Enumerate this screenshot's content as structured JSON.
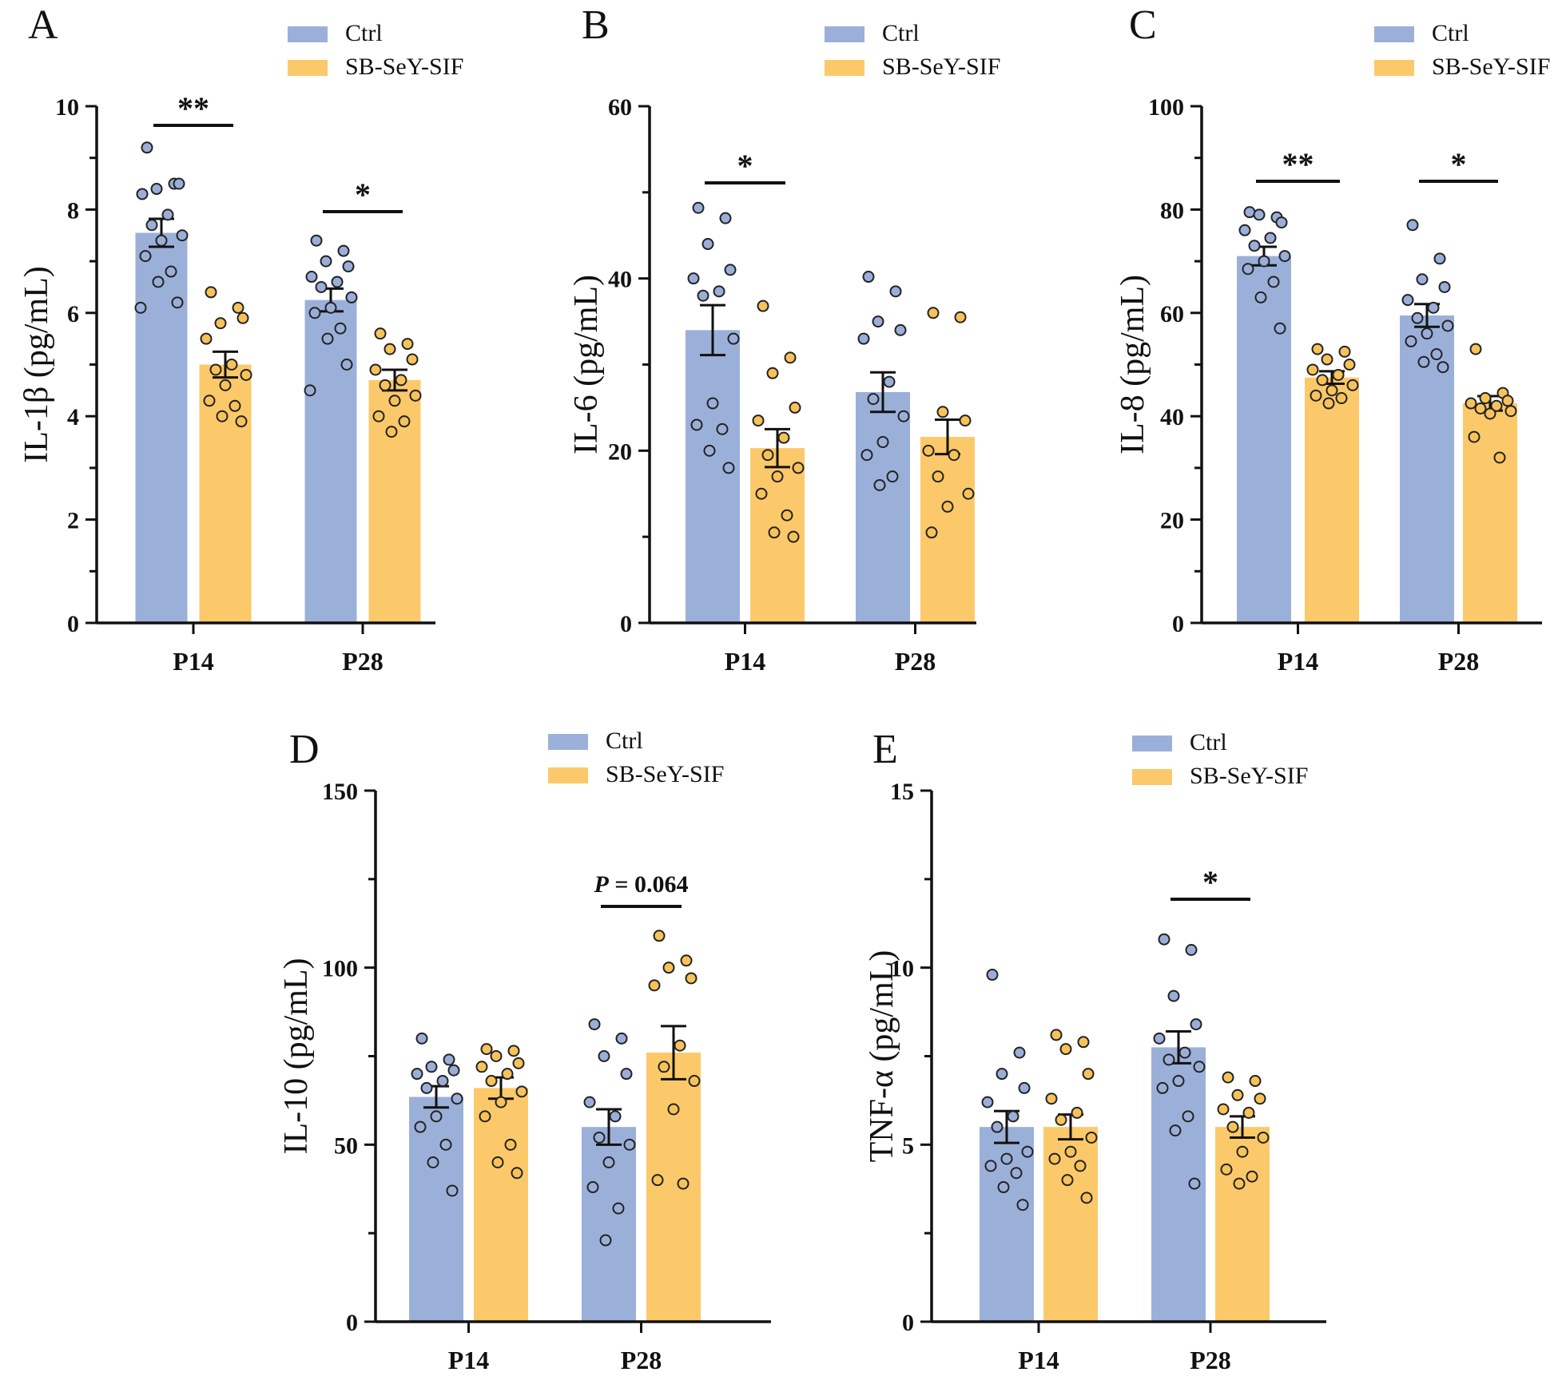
{
  "colors": {
    "ctrl": "#9bb0d9",
    "ctrl_dot": "#9aaed8",
    "treat": "#fcc96a",
    "treat_dot": "#f8c25a",
    "axis": "#111111"
  },
  "legend": {
    "ctrl": "Ctrl",
    "treat": "SB-SeY-SIF"
  },
  "chart_data": [
    {
      "panel": "A",
      "type": "bar",
      "ylabel": "IL-1β (pg/mL)",
      "ylim": [
        0,
        10
      ],
      "yticks": [
        "0",
        "2",
        "4",
        "6",
        "8",
        "10"
      ],
      "categories": [
        "P14",
        "P28"
      ],
      "series": [
        {
          "name": "Ctrl",
          "values": [
            7.55,
            6.25
          ],
          "sem": [
            0.27,
            0.22
          ],
          "points": [
            [
              9.2,
              8.5,
              8.4,
              8.5,
              8.3,
              7.9,
              7.7,
              7.5,
              7.4,
              7.1,
              6.8,
              6.6,
              6.2,
              6.1
            ],
            [
              7.4,
              7.2,
              7.0,
              6.9,
              6.7,
              6.6,
              6.5,
              6.3,
              6.1,
              6.0,
              5.7,
              5.5,
              5.0,
              4.5
            ]
          ]
        },
        {
          "name": "SB-SeY-SIF",
          "values": [
            5.0,
            4.7
          ],
          "sem": [
            0.25,
            0.2
          ],
          "points": [
            [
              6.4,
              6.1,
              5.8,
              5.9,
              5.5,
              5.0,
              4.9,
              4.8,
              4.6,
              4.3,
              4.2,
              4.0,
              3.9
            ],
            [
              5.6,
              5.4,
              5.3,
              5.1,
              4.9,
              4.7,
              4.6,
              4.4,
              4.3,
              4.0,
              3.9,
              3.7
            ]
          ]
        }
      ],
      "sig": [
        "**",
        "*"
      ]
    },
    {
      "panel": "B",
      "type": "bar",
      "ylabel": "IL-6 (pg/mL)",
      "ylim": [
        0,
        60
      ],
      "yticks": [
        "0",
        "20",
        "40",
        "60"
      ],
      "categories": [
        "P14",
        "P28"
      ],
      "series": [
        {
          "name": "Ctrl",
          "values": [
            34.0,
            26.8
          ],
          "sem": [
            2.9,
            2.3
          ],
          "points": [
            [
              48.2,
              47.0,
              44.0,
              41.0,
              40.0,
              38.5,
              38.0,
              33.0,
              25.5,
              23.0,
              22.5,
              20.0,
              18.0
            ],
            [
              40.2,
              38.5,
              35.0,
              34.0,
              33.0,
              28.0,
              26.0,
              24.0,
              21.0,
              19.5,
              17.0,
              16.0
            ]
          ]
        },
        {
          "name": "SB-SeY-SIF",
          "values": [
            20.3,
            21.6
          ],
          "sem": [
            2.2,
            2.0
          ],
          "points": [
            [
              36.8,
              30.8,
              29.0,
              25.0,
              23.5,
              21.5,
              19.5,
              18.0,
              17.0,
              15.0,
              12.5,
              10.5,
              10.0
            ],
            [
              36.0,
              35.5,
              24.5,
              23.5,
              20.0,
              19.5,
              17.0,
              15.0,
              13.5,
              10.5
            ]
          ]
        }
      ],
      "sig": [
        "*",
        ""
      ]
    },
    {
      "panel": "C",
      "type": "bar",
      "ylabel": "IL-8 (pg/mL)",
      "ylim": [
        0,
        100
      ],
      "yticks": [
        "0",
        "20",
        "40",
        "60",
        "80",
        "100"
      ],
      "categories": [
        "P14",
        "P28"
      ],
      "series": [
        {
          "name": "Ctrl",
          "values": [
            71.0,
            59.5
          ],
          "sem": [
            1.8,
            2.2
          ],
          "points": [
            [
              79.5,
              78.5,
              79.0,
              77.5,
              76.0,
              74.5,
              73.0,
              71.0,
              70.0,
              68.5,
              66.0,
              63.0,
              57.0
            ],
            [
              77.0,
              70.5,
              66.5,
              65.0,
              62.5,
              61.0,
              59.0,
              57.5,
              56.0,
              54.5,
              52.0,
              50.5,
              49.5
            ]
          ]
        },
        {
          "name": "SB-SeY-SIF",
          "values": [
            47.5,
            42.5
          ],
          "sem": [
            1.2,
            1.4
          ],
          "points": [
            [
              53.0,
              52.5,
              51.0,
              50.0,
              49.0,
              48.0,
              47.0,
              46.0,
              45.0,
              44.0,
              43.5,
              42.5
            ],
            [
              53.0,
              44.5,
              43.5,
              43.0,
              42.5,
              42.0,
              41.5,
              41.0,
              40.5,
              36.0,
              32.0
            ]
          ]
        }
      ],
      "sig": [
        "**",
        "*"
      ]
    },
    {
      "panel": "D",
      "type": "bar",
      "ylabel": "IL-10 (pg/mL)",
      "ylim": [
        0,
        150
      ],
      "yticks": [
        "0",
        "50",
        "100",
        "150"
      ],
      "categories": [
        "P14",
        "P28"
      ],
      "series": [
        {
          "name": "Ctrl",
          "values": [
            63.5,
            55.0
          ],
          "sem": [
            3.0,
            5.0
          ],
          "points": [
            [
              80.0,
              74.0,
              72.0,
              71.0,
              70.0,
              68.0,
              66.0,
              63.0,
              58.0,
              55.0,
              50.0,
              45.0,
              37.0
            ],
            [
              84.0,
              80.0,
              75.0,
              70.0,
              62.0,
              58.0,
              52.0,
              50.0,
              45.0,
              38.0,
              32.0,
              23.0
            ]
          ]
        },
        {
          "name": "SB-SeY-SIF",
          "values": [
            66.0,
            76.0
          ],
          "sem": [
            3.0,
            7.5
          ],
          "points": [
            [
              77.0,
              76.5,
              75.0,
              73.0,
              72.0,
              70.0,
              68.0,
              65.0,
              62.0,
              58.0,
              50.0,
              45.0,
              42.0
            ],
            [
              109.0,
              102.0,
              100.0,
              97.0,
              95.0,
              78.0,
              72.0,
              68.0,
              60.0,
              40.0,
              39.0
            ]
          ]
        }
      ],
      "sig": [
        "",
        "P = 0.064"
      ],
      "sig_p_label": "P",
      "sig_p_value": " = 0.064"
    },
    {
      "panel": "E",
      "type": "bar",
      "ylabel": "TNF-α (pg/mL)",
      "ylim": [
        0,
        15
      ],
      "yticks": [
        "0",
        "5",
        "10",
        "15"
      ],
      "categories": [
        "P14",
        "P28"
      ],
      "series": [
        {
          "name": "Ctrl",
          "values": [
            5.5,
            7.75
          ],
          "sem": [
            0.45,
            0.45
          ],
          "points": [
            [
              9.8,
              7.6,
              7.0,
              6.6,
              6.2,
              5.8,
              5.5,
              4.8,
              4.6,
              4.4,
              4.2,
              3.8,
              3.3
            ],
            [
              10.8,
              10.5,
              9.2,
              8.4,
              8.0,
              7.6,
              7.4,
              7.2,
              6.8,
              6.6,
              5.8,
              5.4,
              3.9
            ]
          ]
        },
        {
          "name": "SB-SeY-SIF",
          "values": [
            5.5,
            5.5
          ],
          "sem": [
            0.35,
            0.3
          ],
          "points": [
            [
              8.1,
              7.9,
              7.7,
              7.0,
              6.3,
              5.9,
              5.7,
              5.2,
              4.8,
              4.6,
              4.4,
              4.0,
              3.5
            ],
            [
              6.9,
              6.8,
              6.4,
              6.3,
              6.0,
              5.9,
              5.5,
              5.2,
              4.8,
              4.3,
              4.1,
              3.9
            ]
          ]
        }
      ],
      "sig": [
        "",
        "*"
      ]
    }
  ]
}
